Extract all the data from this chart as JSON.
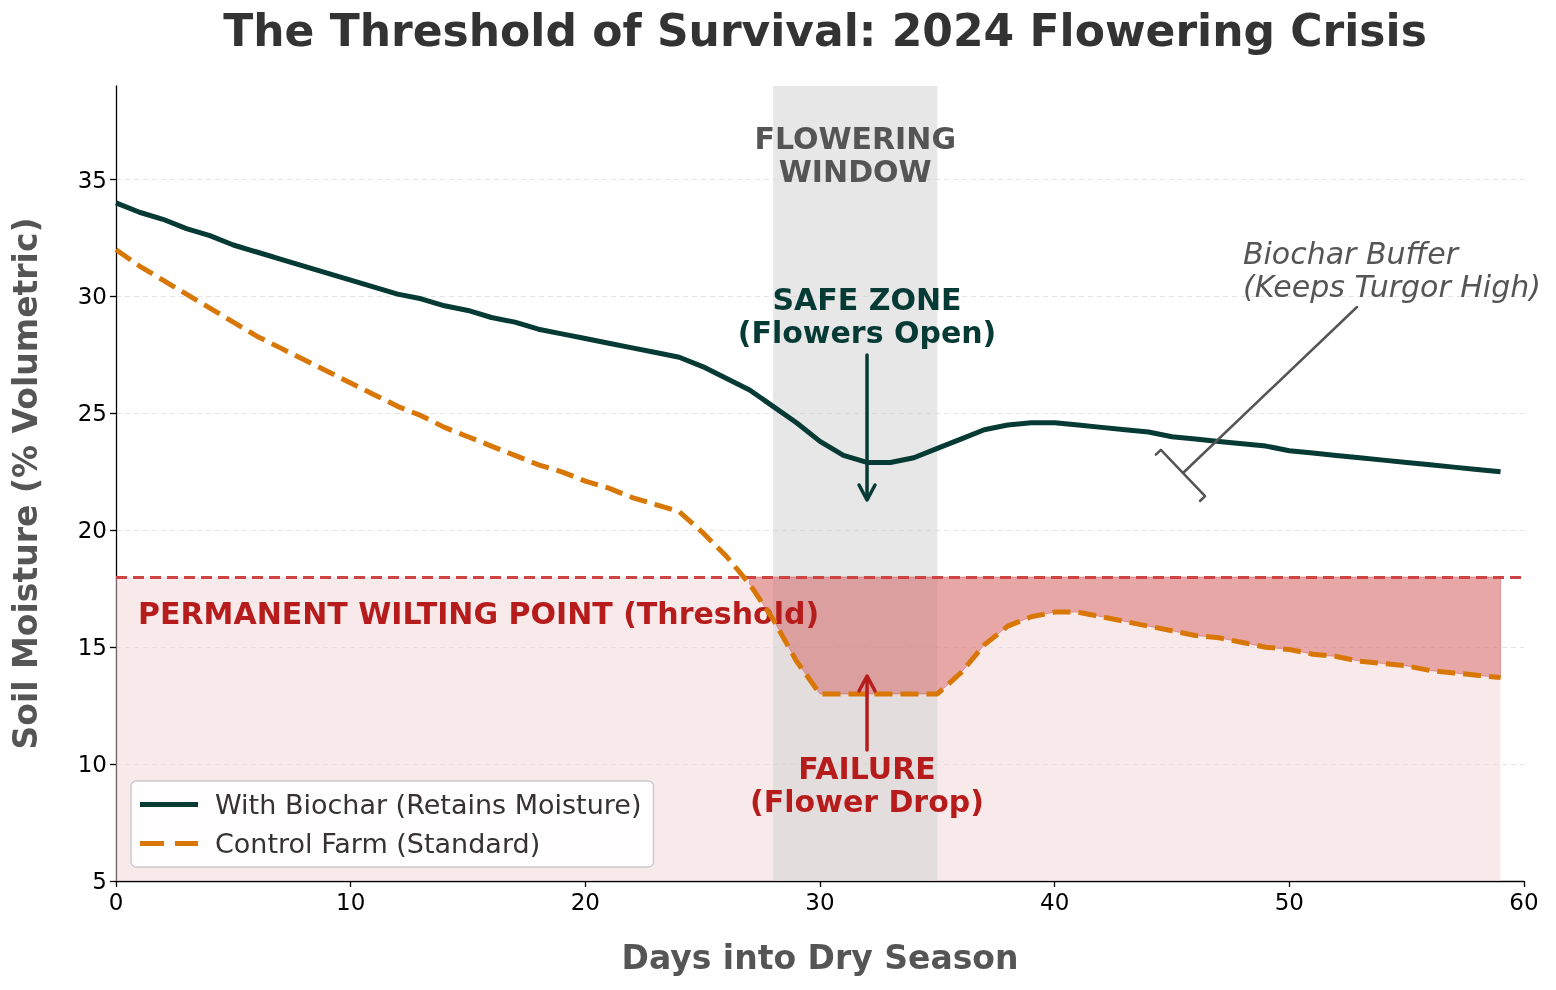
{
  "chart_data": {
    "type": "line",
    "title": "The Threshold of Survival: 2024 Flowering Crisis",
    "xlabel": "Days into Dry Season",
    "ylabel": "Soil Moisture (% Volumetric)",
    "x": [
      0,
      1,
      2,
      3,
      4,
      5,
      6,
      7,
      8,
      9,
      10,
      11,
      12,
      13,
      14,
      15,
      16,
      17,
      18,
      19,
      20,
      21,
      22,
      23,
      24,
      25,
      26,
      27,
      28,
      29,
      30,
      31,
      32,
      33,
      34,
      35,
      36,
      37,
      38,
      39,
      40,
      41,
      42,
      43,
      44,
      45,
      46,
      47,
      48,
      49,
      50,
      51,
      52,
      53,
      54,
      55,
      56,
      57,
      58,
      59
    ],
    "series": [
      {
        "name": "With Biochar (Retains Moisture)",
        "color": "#063a35",
        "values": [
          34.0,
          33.6,
          33.3,
          32.9,
          32.6,
          32.2,
          31.9,
          31.6,
          31.3,
          31.0,
          30.7,
          30.4,
          30.1,
          29.9,
          29.6,
          29.4,
          29.1,
          28.9,
          28.6,
          28.4,
          28.2,
          28.0,
          27.8,
          27.6,
          27.4,
          27.0,
          26.5,
          26.0,
          25.3,
          24.6,
          23.8,
          23.2,
          22.9,
          22.9,
          23.1,
          23.5,
          23.9,
          24.3,
          24.5,
          24.6,
          24.6,
          24.5,
          24.4,
          24.3,
          24.2,
          24.0,
          23.9,
          23.8,
          23.7,
          23.6,
          23.4,
          23.3,
          23.2,
          23.1,
          23.0,
          22.9,
          22.8,
          22.7,
          22.6,
          22.5
        ]
      },
      {
        "name": "Control Farm (Standard)",
        "color": "#d97706",
        "line_style": "dashed",
        "values": [
          32.0,
          31.3,
          30.7,
          30.1,
          29.5,
          28.9,
          28.3,
          27.8,
          27.3,
          26.8,
          26.3,
          25.8,
          25.3,
          24.9,
          24.4,
          24.0,
          23.6,
          23.2,
          22.8,
          22.5,
          22.1,
          21.8,
          21.4,
          21.1,
          20.8,
          19.9,
          18.9,
          17.7,
          16.2,
          14.4,
          13.0,
          13.0,
          13.0,
          13.0,
          13.0,
          13.0,
          13.9,
          15.1,
          15.9,
          16.3,
          16.5,
          16.5,
          16.3,
          16.1,
          15.9,
          15.7,
          15.5,
          15.4,
          15.2,
          15.0,
          14.9,
          14.7,
          14.6,
          14.4,
          14.3,
          14.2,
          14.0,
          13.9,
          13.8,
          13.7
        ],
        "lower": [
          null,
          null,
          null,
          null,
          null,
          null,
          null,
          null,
          null,
          null,
          null,
          null,
          null,
          null,
          null,
          null,
          null,
          null,
          null,
          null,
          null,
          null,
          null,
          null,
          null,
          null,
          null,
          17.7,
          16.2,
          14.4,
          13.0,
          13.0,
          13.0,
          13.0,
          13.0,
          13.0,
          13.9,
          15.1,
          15.9,
          16.3,
          16.5,
          16.5,
          16.3,
          16.1,
          15.9,
          15.7,
          15.5,
          15.4,
          15.2,
          15.0,
          14.9,
          14.7,
          14.6,
          14.4,
          14.3,
          14.2,
          14.0,
          13.9,
          13.8,
          13.7
        ],
        "upper": [
          null,
          null,
          null,
          null,
          null,
          null,
          null,
          null,
          null,
          null,
          null,
          null,
          null,
          null,
          null,
          null,
          null,
          null,
          null,
          null,
          null,
          null,
          null,
          null,
          null,
          null,
          null,
          18,
          18,
          18,
          18,
          18,
          18,
          18,
          18,
          18,
          18,
          18,
          18,
          18,
          18,
          18,
          18,
          18,
          18,
          18,
          18,
          18,
          18,
          18,
          18,
          18,
          18,
          18,
          18,
          18,
          18,
          18,
          18,
          18
        ]
      }
    ],
    "xlim": [
      0,
      60
    ],
    "xticks": [
      0,
      10,
      20,
      30,
      40,
      50,
      60
    ],
    "ylim": [
      5,
      39
    ],
    "yticks": [
      5,
      10,
      15,
      20,
      25,
      30,
      35
    ],
    "ref_lines": [
      {
        "axis": "y",
        "value": 18,
        "label": "PERMANENT WILTING POINT (Threshold)",
        "color": "#cc4444",
        "line_style": "dashed"
      }
    ],
    "bands": [
      {
        "axis": "y",
        "from": 5,
        "to": 18,
        "color": "#f1d5d5"
      },
      {
        "axis": "x",
        "from": 28,
        "to": 35,
        "label": "FLOWERING\nWINDOW",
        "color": "#d0d0d0"
      }
    ],
    "annotations": [
      "SAFE ZONE\n(Flowers Open)",
      "FAILURE\n(Flower Drop)",
      "Biochar Buffer\n(Keeps Turgor High)"
    ],
    "grid": "y",
    "legend": "bottom left",
    "marker": "none",
    "line_style": "solid"
  }
}
